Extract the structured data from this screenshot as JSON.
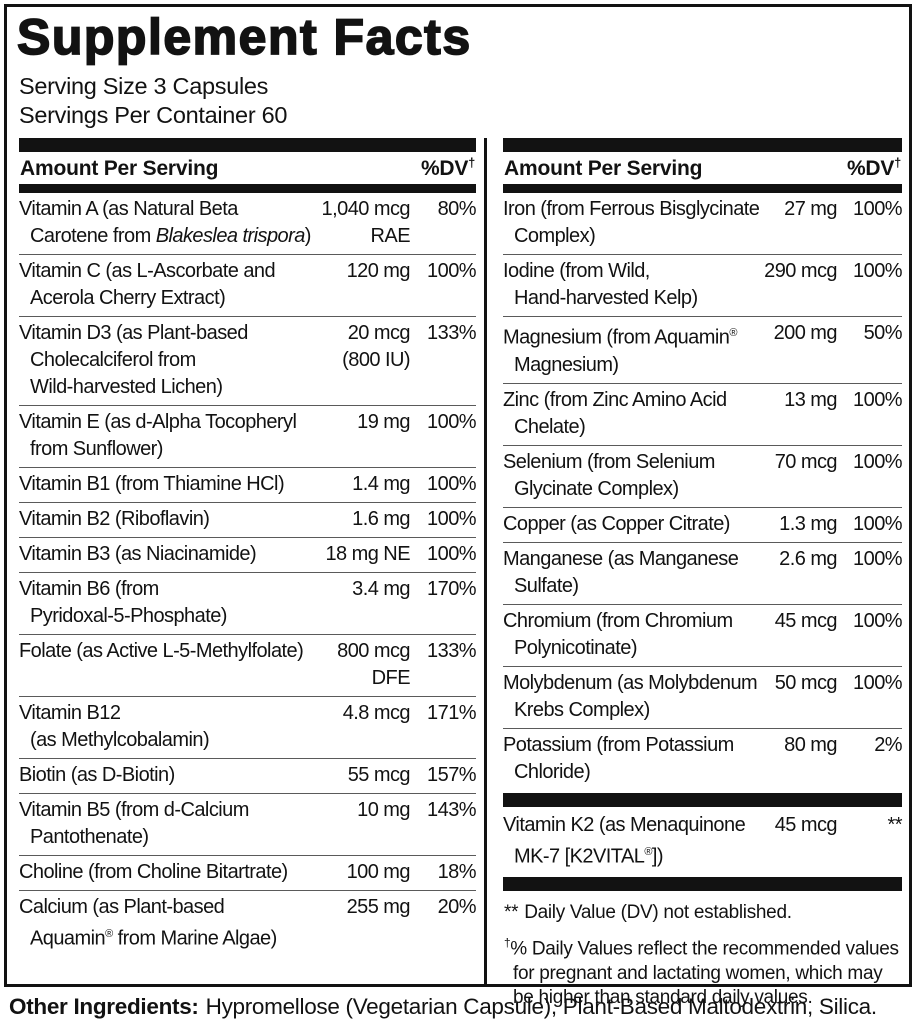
{
  "title": "Supplement Facts",
  "serving": {
    "size": "Serving Size 3 Capsules",
    "per_container": "Servings Per Container 60"
  },
  "column_header": {
    "amount": "Amount Per Serving",
    "dv": "%DV",
    "dv_sup": "†"
  },
  "columns": [
    {
      "side": "left",
      "rows": [
        {
          "name_lines": [
            [
              {
                "t": "Vitamin A (as Natural Beta"
              }
            ],
            [
              {
                "t": "Carotene from "
              },
              {
                "t": "Blakeslea trispora",
                "i": true
              },
              {
                "t": ")"
              }
            ]
          ],
          "amount_lines": [
            "1,040 mcg",
            "RAE"
          ],
          "dv": "80%"
        },
        {
          "name_lines": [
            [
              {
                "t": "Vitamin C (as L-Ascorbate and"
              }
            ],
            [
              {
                "t": "Acerola Cherry Extract)"
              }
            ]
          ],
          "amount_lines": [
            "120 mg"
          ],
          "dv": "100%"
        },
        {
          "name_lines": [
            [
              {
                "t": "Vitamin D3 (as Plant-based"
              }
            ],
            [
              {
                "t": "Cholecalciferol from"
              }
            ],
            [
              {
                "t": "Wild-harvested Lichen)"
              }
            ]
          ],
          "amount_lines": [
            "20 mcg",
            "(800 IU)"
          ],
          "dv": "133%"
        },
        {
          "name_lines": [
            [
              {
                "t": "Vitamin E (as d-Alpha Tocopheryl"
              }
            ],
            [
              {
                "t": "from Sunflower)"
              }
            ]
          ],
          "amount_lines": [
            "19 mg"
          ],
          "dv": "100%"
        },
        {
          "name_lines": [
            [
              {
                "t": "Vitamin B1 (from Thiamine HCl)"
              }
            ]
          ],
          "amount_lines": [
            "1.4 mg"
          ],
          "dv": "100%"
        },
        {
          "name_lines": [
            [
              {
                "t": "Vitamin B2 (Riboflavin)"
              }
            ]
          ],
          "amount_lines": [
            "1.6 mg"
          ],
          "dv": "100%"
        },
        {
          "name_lines": [
            [
              {
                "t": "Vitamin B3 (as Niacinamide)"
              }
            ]
          ],
          "amount_lines": [
            "18 mg NE"
          ],
          "dv": "100%"
        },
        {
          "name_lines": [
            [
              {
                "t": "Vitamin B6 (from"
              }
            ],
            [
              {
                "t": "Pyridoxal-5-Phosphate)"
              }
            ]
          ],
          "amount_lines": [
            "3.4 mg"
          ],
          "dv": "170%"
        },
        {
          "name_lines": [
            [
              {
                "t": "Folate (as Active L-5-Methylfolate)"
              }
            ]
          ],
          "amount_lines": [
            "800 mcg",
            "DFE"
          ],
          "dv": "133%"
        },
        {
          "name_lines": [
            [
              {
                "t": "Vitamin B12"
              }
            ],
            [
              {
                "t": "(as Methylcobalamin)"
              }
            ]
          ],
          "amount_lines": [
            "4.8 mcg"
          ],
          "dv": "171%"
        },
        {
          "name_lines": [
            [
              {
                "t": "Biotin (as D-Biotin)"
              }
            ]
          ],
          "amount_lines": [
            "55 mcg"
          ],
          "dv": "157%"
        },
        {
          "name_lines": [
            [
              {
                "t": "Vitamin B5 (from d-Calcium"
              }
            ],
            [
              {
                "t": "Pantothenate)"
              }
            ]
          ],
          "amount_lines": [
            "10 mg"
          ],
          "dv": "143%"
        },
        {
          "name_lines": [
            [
              {
                "t": "Choline (from Choline Bitartrate)"
              }
            ]
          ],
          "amount_lines": [
            "100 mg"
          ],
          "dv": "18%"
        },
        {
          "name_lines": [
            [
              {
                "t": "Calcium (as Plant-based"
              }
            ],
            [
              {
                "t": "Aquamin"
              },
              {
                "t": "®",
                "sup": true
              },
              {
                "t": " from Marine Algae)"
              }
            ]
          ],
          "amount_lines": [
            "255 mg"
          ],
          "dv": "20%"
        }
      ]
    },
    {
      "side": "right",
      "rows": [
        {
          "name_lines": [
            [
              {
                "t": "Iron (from Ferrous Bisglycinate"
              }
            ],
            [
              {
                "t": "Complex)"
              }
            ]
          ],
          "amount_lines": [
            "27 mg"
          ],
          "dv": "100%"
        },
        {
          "name_lines": [
            [
              {
                "t": "Iodine (from Wild,"
              }
            ],
            [
              {
                "t": "Hand-harvested Kelp)"
              }
            ]
          ],
          "amount_lines": [
            "290 mcg"
          ],
          "dv": "100%"
        },
        {
          "name_lines": [
            [
              {
                "t": "Magnesium (from Aquamin"
              },
              {
                "t": "®",
                "sup": true
              }
            ],
            [
              {
                "t": "Magnesium)"
              }
            ]
          ],
          "amount_lines": [
            "200 mg"
          ],
          "dv": "50%"
        },
        {
          "name_lines": [
            [
              {
                "t": "Zinc (from Zinc Amino Acid"
              }
            ],
            [
              {
                "t": "Chelate)"
              }
            ]
          ],
          "amount_lines": [
            "13 mg"
          ],
          "dv": "100%"
        },
        {
          "name_lines": [
            [
              {
                "t": "Selenium (from Selenium"
              }
            ],
            [
              {
                "t": "Glycinate Complex)"
              }
            ]
          ],
          "amount_lines": [
            "70 mcg"
          ],
          "dv": "100%"
        },
        {
          "name_lines": [
            [
              {
                "t": "Copper (as Copper Citrate)"
              }
            ]
          ],
          "amount_lines": [
            "1.3 mg"
          ],
          "dv": "100%"
        },
        {
          "name_lines": [
            [
              {
                "t": "Manganese (as Manganese"
              }
            ],
            [
              {
                "t": "Sulfate)"
              }
            ]
          ],
          "amount_lines": [
            "2.6 mg"
          ],
          "dv": "100%"
        },
        {
          "name_lines": [
            [
              {
                "t": "Chromium (from Chromium"
              }
            ],
            [
              {
                "t": "Polynicotinate)"
              }
            ]
          ],
          "amount_lines": [
            "45 mcg"
          ],
          "dv": "100%"
        },
        {
          "name_lines": [
            [
              {
                "t": "Molybdenum (as Molybdenum"
              }
            ],
            [
              {
                "t": "Krebs Complex)"
              }
            ]
          ],
          "amount_lines": [
            "50 mcg"
          ],
          "dv": "100%"
        },
        {
          "name_lines": [
            [
              {
                "t": "Potassium (from Potassium"
              }
            ],
            [
              {
                "t": "Chloride)"
              }
            ]
          ],
          "amount_lines": [
            "80 mg"
          ],
          "dv": "2%"
        },
        {
          "bar_before": true,
          "name_lines": [
            [
              {
                "t": "Vitamin K2 (as Menaquinone"
              }
            ],
            [
              {
                "t": "MK-7 [K2VITAL"
              },
              {
                "t": "®",
                "sup": true
              },
              {
                "t": "])"
              }
            ]
          ],
          "amount_lines": [
            "45 mcg"
          ],
          "dv": "**"
        }
      ]
    }
  ],
  "footnotes": [
    {
      "marker": "**",
      "text": "Daily Value (DV) not established."
    },
    {
      "marker": "†",
      "text": "% Daily Values reflect the recommended values for pregnant and lactating women, which may be higher than standard daily values."
    }
  ],
  "other_ingredients": {
    "label": "Other Ingredients:",
    "text": "Hypromellose (Vegetarian Capsule), Plant-Based Maltodextrin, Silica."
  },
  "colors": {
    "ink": "#121212",
    "rule": "#5a5a5a",
    "bar": "#121212",
    "background": "#ffffff"
  }
}
